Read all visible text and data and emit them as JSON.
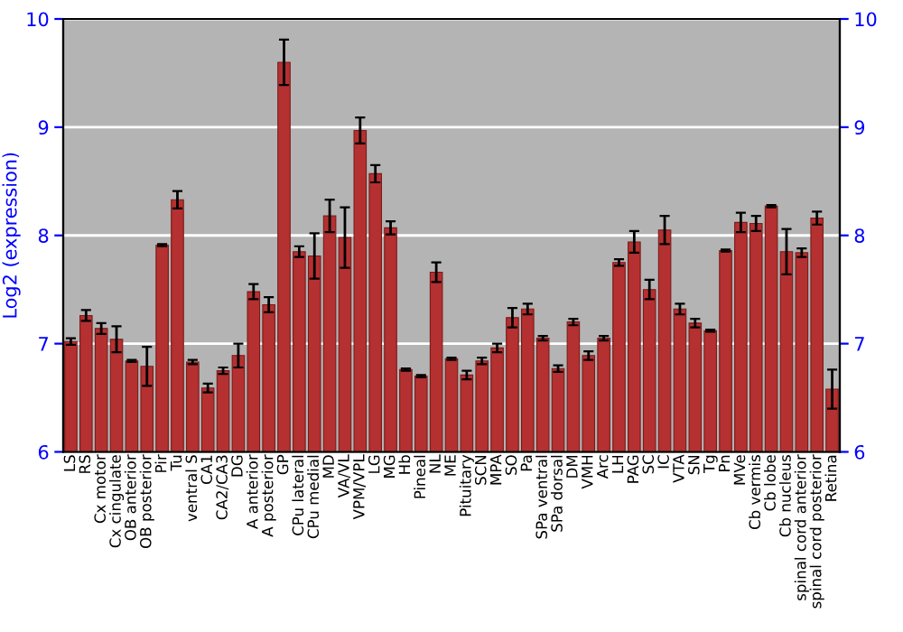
{
  "chart_data": {
    "type": "bar",
    "ylabel": "Log2 (expression)",
    "categories": [
      "LS",
      "RS",
      "Cx motor",
      "Cx cingulate",
      "OB anterior",
      "OB posterior",
      "Pir",
      "Tu",
      "ventral S",
      "CA1",
      "CA2/CA3",
      "DG",
      "A anterior",
      "A posterior",
      "GP",
      "CPu lateral",
      "CPu medial",
      "MD",
      "VA/VL",
      "VPM/VPL",
      "LG",
      "MG",
      "Hb",
      "Pineal",
      "NL",
      "ME",
      "Pituitary",
      "SCN",
      "MPA",
      "SO",
      "Pa",
      "SPa ventral",
      "SPa dorsal",
      "DM",
      "VMH",
      "Arc",
      "LH",
      "PAG",
      "SC",
      "IC",
      "VTA",
      "SN",
      "Tg",
      "Pn",
      "MVe",
      "Cb vermis",
      "Cb lobe",
      "Cb nucleus",
      "spinal cord anterior",
      "spinal cord posterior",
      "Retina"
    ],
    "values": [
      7.02,
      7.26,
      7.14,
      7.04,
      6.84,
      6.79,
      7.91,
      8.33,
      6.83,
      6.59,
      6.75,
      6.89,
      7.48,
      7.36,
      9.6,
      7.85,
      7.81,
      8.18,
      7.98,
      8.97,
      8.57,
      8.07,
      6.76,
      6.7,
      7.66,
      6.86,
      6.71,
      6.84,
      6.96,
      7.24,
      7.32,
      7.05,
      6.77,
      7.2,
      6.89,
      7.05,
      7.75,
      7.94,
      7.5,
      8.05,
      7.32,
      7.19,
      7.12,
      7.86,
      8.12,
      8.11,
      8.27,
      7.85,
      7.84,
      8.16,
      6.58
    ],
    "errors": [
      0.03,
      0.05,
      0.05,
      0.12,
      0.01,
      0.18,
      0.01,
      0.08,
      0.02,
      0.04,
      0.03,
      0.11,
      0.07,
      0.07,
      0.21,
      0.05,
      0.21,
      0.15,
      0.28,
      0.12,
      0.08,
      0.06,
      0.01,
      0.01,
      0.09,
      0.01,
      0.04,
      0.03,
      0.04,
      0.09,
      0.05,
      0.02,
      0.03,
      0.03,
      0.04,
      0.02,
      0.03,
      0.1,
      0.09,
      0.13,
      0.05,
      0.04,
      0.01,
      0.01,
      0.09,
      0.07,
      0.01,
      0.21,
      0.04,
      0.06,
      0.18
    ],
    "color": "#b53030",
    "ylim": [
      6,
      10
    ],
    "yticks": [
      6,
      7,
      8,
      9,
      10
    ],
    "y2lim": [
      6,
      10
    ],
    "y2ticks": [
      6,
      7,
      8,
      9,
      10
    ],
    "grid": "y"
  }
}
